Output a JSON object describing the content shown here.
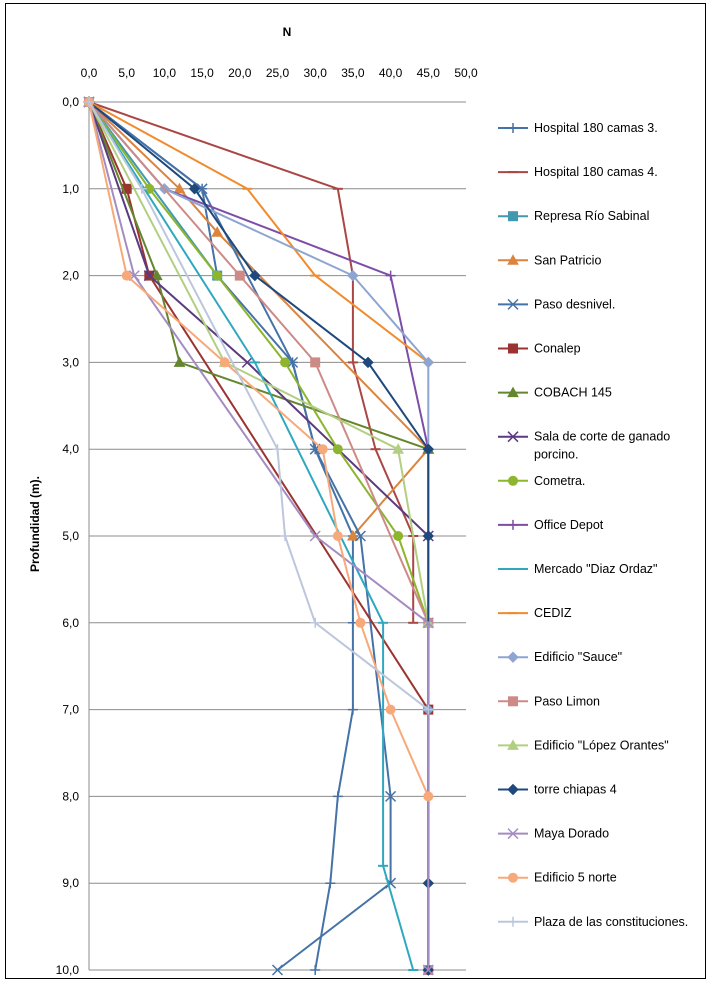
{
  "chart_data": {
    "type": "line",
    "title": "N",
    "xlabel": "N",
    "ylabel": "Profundidad (m).",
    "xlim": [
      0,
      50
    ],
    "ylim": [
      0,
      10
    ],
    "y_inverted": true,
    "x_axis_position": "top",
    "grid": "horizontal",
    "legend_position": "right",
    "x_ticks": [
      "0,0",
      "5,0",
      "10,0",
      "15,0",
      "20,0",
      "25,0",
      "30,0",
      "35,0",
      "40,0",
      "45,0",
      "50,0"
    ],
    "y_ticks": [
      "0,0",
      "1,0",
      "2,0",
      "3,0",
      "4,0",
      "5,0",
      "6,0",
      "7,0",
      "8,0",
      "9,0",
      "10,0"
    ],
    "series": [
      {
        "name": "Hospital 180 camas 3.",
        "color": "#4572A7",
        "marker": "plus",
        "points": [
          [
            0,
            0
          ],
          [
            15,
            1
          ],
          [
            17,
            2
          ],
          [
            27,
            3
          ],
          [
            30,
            4
          ],
          [
            35,
            5
          ],
          [
            35,
            6
          ],
          [
            35,
            7
          ],
          [
            33,
            8
          ],
          [
            32,
            9
          ],
          [
            30,
            10
          ]
        ]
      },
      {
        "name": "Hospital 180 camas 4.",
        "color": "#AA4643",
        "marker": "dash",
        "points": [
          [
            0,
            0
          ],
          [
            33,
            1
          ],
          [
            35,
            2
          ],
          [
            35,
            3
          ],
          [
            38,
            4
          ],
          [
            43,
            5
          ],
          [
            43,
            6
          ]
        ]
      },
      {
        "name": "Represa Río Sabinal",
        "color": "#4198AF",
        "marker": "square",
        "points": [
          [
            0,
            0
          ],
          [
            17,
            2
          ]
        ]
      },
      {
        "name": "San Patricio",
        "color": "#DB843D",
        "marker": "triangle",
        "points": [
          [
            0,
            0
          ],
          [
            12,
            1
          ],
          [
            17,
            1.5
          ],
          [
            45,
            4
          ],
          [
            35,
            5
          ]
        ]
      },
      {
        "name": "Paso desnivel.",
        "color": "#4572A7",
        "marker": "x",
        "points": [
          [
            0,
            0
          ],
          [
            15,
            1
          ],
          [
            27,
            3
          ],
          [
            30,
            4
          ],
          [
            36,
            5
          ],
          [
            40,
            8
          ],
          [
            40,
            9
          ],
          [
            25,
            10
          ]
        ]
      },
      {
        "name": "Conalep",
        "color": "#9B3431",
        "marker": "square",
        "points": [
          [
            0,
            0
          ],
          [
            5,
            1
          ],
          [
            8,
            2
          ],
          [
            45,
            7
          ]
        ]
      },
      {
        "name": "COBACH 145",
        "color": "#64862D",
        "marker": "triangle",
        "points": [
          [
            0,
            0
          ],
          [
            9,
            2
          ],
          [
            12,
            3
          ],
          [
            45,
            4
          ]
        ]
      },
      {
        "name": "Sala de corte de ganado porcino.",
        "color": "#5B3A7E",
        "marker": "x",
        "points": [
          [
            0,
            0
          ],
          [
            8,
            2
          ],
          [
            21,
            3
          ],
          [
            45,
            5
          ]
        ]
      },
      {
        "name": "Cometra.",
        "color": "#8DB52D",
        "marker": "circle",
        "points": [
          [
            0,
            0
          ],
          [
            8,
            1
          ],
          [
            17,
            2
          ],
          [
            26,
            3
          ],
          [
            33,
            4
          ],
          [
            41,
            5
          ],
          [
            45,
            6
          ]
        ]
      },
      {
        "name": "Office Depot",
        "color": "#7D4DA7",
        "marker": "plus",
        "points": [
          [
            0,
            0
          ],
          [
            10,
            1
          ],
          [
            40,
            2
          ],
          [
            45,
            4
          ],
          [
            45,
            10
          ]
        ]
      },
      {
        "name": "Mercado \"Diaz Ordaz\"",
        "color": "#2FA8BF",
        "marker": "dash",
        "points": [
          [
            0,
            0
          ],
          [
            22,
            3
          ],
          [
            39,
            6
          ],
          [
            39,
            8.8
          ],
          [
            43,
            10
          ]
        ]
      },
      {
        "name": "CEDIZ",
        "color": "#F08C2D",
        "marker": "dash",
        "points": [
          [
            0,
            0
          ],
          [
            21,
            1
          ],
          [
            30,
            2
          ],
          [
            45,
            3
          ]
        ]
      },
      {
        "name": "Edificio \"Sauce\"",
        "color": "#8EA5D1",
        "marker": "diamond",
        "points": [
          [
            0,
            0
          ],
          [
            10,
            1
          ],
          [
            35,
            2
          ],
          [
            45,
            3
          ],
          [
            45,
            4
          ],
          [
            45,
            7
          ],
          [
            45,
            10
          ]
        ]
      },
      {
        "name": "Paso Limon",
        "color": "#CD8A86",
        "marker": "square",
        "points": [
          [
            0,
            0
          ],
          [
            20,
            2
          ],
          [
            30,
            3
          ],
          [
            45,
            6
          ],
          [
            45,
            10
          ]
        ]
      },
      {
        "name": "Edificio \"López Orantes\"",
        "color": "#B2CF81",
        "marker": "triangle",
        "points": [
          [
            0,
            0
          ],
          [
            18,
            3
          ],
          [
            41,
            4
          ],
          [
            45,
            6
          ]
        ]
      },
      {
        "name": "torre chiapas 4",
        "color": "#1F497D",
        "marker": "diamond",
        "points": [
          [
            0,
            0
          ],
          [
            14,
            1
          ],
          [
            22,
            2
          ],
          [
            37,
            3
          ],
          [
            45,
            4
          ],
          [
            45,
            5
          ],
          [
            45,
            9
          ],
          [
            45,
            10
          ]
        ]
      },
      {
        "name": "Maya Dorado",
        "color": "#A48CC2",
        "marker": "x",
        "points": [
          [
            0,
            0
          ],
          [
            6,
            2
          ],
          [
            30,
            5
          ],
          [
            45,
            6
          ],
          [
            45,
            10
          ]
        ]
      },
      {
        "name": "Edificio 5 norte",
        "color": "#F7A97A",
        "marker": "circle",
        "points": [
          [
            0,
            0
          ],
          [
            5,
            2
          ],
          [
            18,
            3
          ],
          [
            31,
            4
          ],
          [
            33,
            5
          ],
          [
            36,
            6
          ],
          [
            40,
            7
          ],
          [
            45,
            8
          ]
        ]
      },
      {
        "name": "Plaza de las constituciones.",
        "color": "#BCC6DD",
        "marker": "plus",
        "points": [
          [
            0,
            0
          ],
          [
            7,
            1
          ],
          [
            25,
            4
          ],
          [
            26,
            5
          ],
          [
            30,
            6
          ],
          [
            45,
            7
          ]
        ]
      }
    ]
  }
}
